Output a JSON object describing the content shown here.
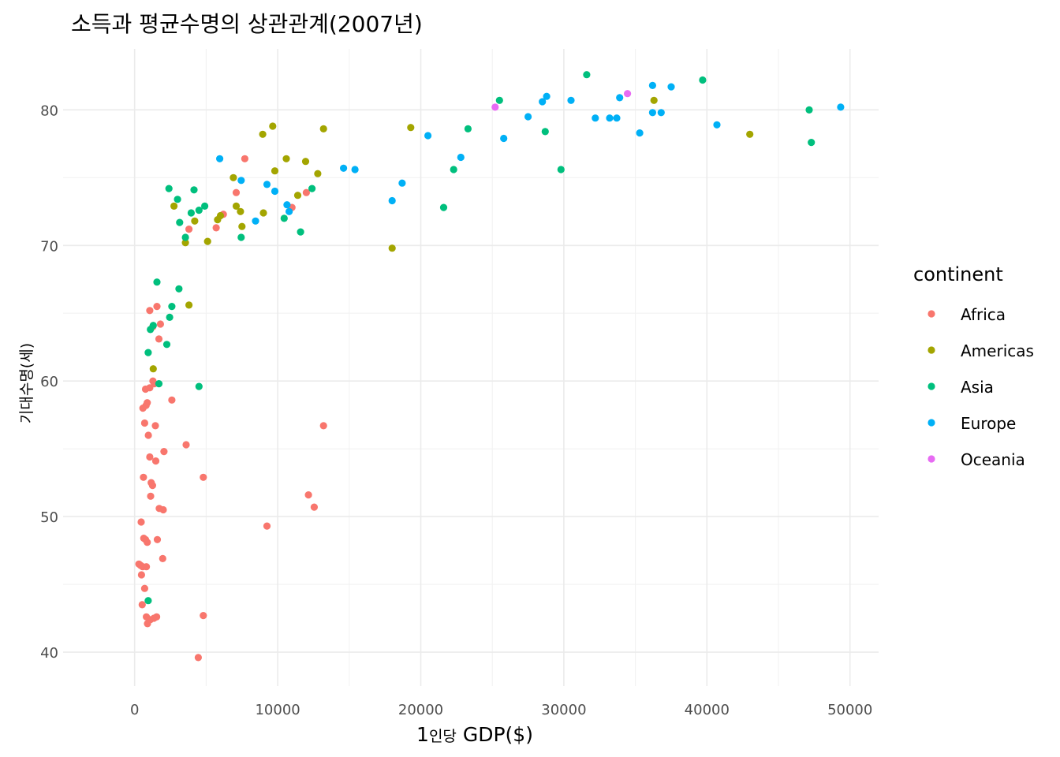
{
  "chart_data": {
    "type": "scatter",
    "title": "소득과 평균수명의 상관관계(2007년)",
    "xlabel_num": "1",
    "xlabel_hangul": "인당",
    "xlabel_rest": " GDP($)",
    "ylabel": "기대수명(세)",
    "xlim": [
      -5000,
      52000
    ],
    "ylim": [
      37.5,
      84.5
    ],
    "x_ticks": [
      0,
      10000,
      20000,
      30000,
      40000,
      50000
    ],
    "x_tick_labels": [
      "0",
      "10000",
      "20000",
      "30000",
      "40000",
      "50000"
    ],
    "y_ticks": [
      40,
      50,
      60,
      70,
      80
    ],
    "y_tick_labels": [
      "40",
      "50",
      "60",
      "70",
      "80"
    ],
    "grid": true,
    "legend": {
      "title": "continent",
      "placement": "right"
    },
    "series": [
      {
        "name": "Africa",
        "color": "#F8766D",
        "points": [
          [
            300,
            46.5
          ],
          [
            420,
            46.4
          ],
          [
            480,
            45.7
          ],
          [
            530,
            43.5
          ],
          [
            460,
            49.6
          ],
          [
            700,
            44.7
          ],
          [
            560,
            46.3
          ],
          [
            820,
            46.3
          ],
          [
            640,
            48.4
          ],
          [
            760,
            48.3
          ],
          [
            880,
            48.1
          ],
          [
            820,
            42.6
          ],
          [
            900,
            42.1
          ],
          [
            1100,
            42.4
          ],
          [
            1350,
            42.5
          ],
          [
            1540,
            42.6
          ],
          [
            1590,
            48.3
          ],
          [
            1960,
            46.9
          ],
          [
            1720,
            50.6
          ],
          [
            2000,
            50.5
          ],
          [
            1120,
            51.5
          ],
          [
            1160,
            52.5
          ],
          [
            1250,
            52.3
          ],
          [
            620,
            52.9
          ],
          [
            1060,
            54.4
          ],
          [
            1480,
            54.1
          ],
          [
            2050,
            54.8
          ],
          [
            3600,
            55.3
          ],
          [
            960,
            56.0
          ],
          [
            1450,
            56.7
          ],
          [
            700,
            56.9
          ],
          [
            580,
            58.0
          ],
          [
            800,
            58.2
          ],
          [
            880,
            58.4
          ],
          [
            760,
            59.4
          ],
          [
            1060,
            59.5
          ],
          [
            1280,
            60.0
          ],
          [
            1380,
            59.8
          ],
          [
            2600,
            58.6
          ],
          [
            4800,
            52.9
          ],
          [
            4450,
            39.6
          ],
          [
            4800,
            42.7
          ],
          [
            9250,
            49.3
          ],
          [
            12150,
            51.6
          ],
          [
            12550,
            50.7
          ],
          [
            13200,
            56.7
          ],
          [
            1700,
            63.1
          ],
          [
            1800,
            64.2
          ],
          [
            1060,
            65.2
          ],
          [
            1560,
            65.5
          ],
          [
            1270,
            64.0
          ],
          [
            3800,
            71.2
          ],
          [
            5700,
            71.3
          ],
          [
            6200,
            72.3
          ],
          [
            7100,
            73.9
          ],
          [
            7700,
            76.4
          ],
          [
            11000,
            72.8
          ],
          [
            12000,
            73.9
          ]
        ]
      },
      {
        "name": "Americas",
        "color": "#A3A500",
        "points": [
          [
            1300,
            60.9
          ],
          [
            3800,
            65.6
          ],
          [
            2750,
            72.9
          ],
          [
            3550,
            70.2
          ],
          [
            4200,
            71.8
          ],
          [
            5100,
            70.3
          ],
          [
            5800,
            71.9
          ],
          [
            6000,
            72.2
          ],
          [
            6900,
            75.0
          ],
          [
            7100,
            72.9
          ],
          [
            7400,
            72.5
          ],
          [
            7500,
            71.4
          ],
          [
            8950,
            78.2
          ],
          [
            9000,
            72.4
          ],
          [
            9650,
            78.8
          ],
          [
            9800,
            75.5
          ],
          [
            10600,
            76.4
          ],
          [
            11400,
            73.7
          ],
          [
            11950,
            76.2
          ],
          [
            12800,
            75.3
          ],
          [
            13200,
            78.6
          ],
          [
            18000,
            69.8
          ],
          [
            19300,
            78.7
          ],
          [
            36300,
            80.7
          ],
          [
            43000,
            78.2
          ]
        ]
      },
      {
        "name": "Asia",
        "color": "#00BF7D",
        "points": [
          [
            950,
            43.8
          ],
          [
            950,
            62.1
          ],
          [
            1100,
            63.8
          ],
          [
            1300,
            64.1
          ],
          [
            1700,
            59.8
          ],
          [
            1560,
            67.3
          ],
          [
            2250,
            62.7
          ],
          [
            2450,
            64.7
          ],
          [
            2600,
            65.5
          ],
          [
            3100,
            66.8
          ],
          [
            2400,
            74.2
          ],
          [
            3000,
            73.4
          ],
          [
            3150,
            71.7
          ],
          [
            3550,
            70.6
          ],
          [
            3950,
            72.4
          ],
          [
            4150,
            74.1
          ],
          [
            4500,
            72.6
          ],
          [
            4900,
            72.9
          ],
          [
            4500,
            59.6
          ],
          [
            7450,
            70.6
          ],
          [
            10450,
            72.0
          ],
          [
            11600,
            71.0
          ],
          [
            12400,
            74.2
          ],
          [
            21600,
            72.8
          ],
          [
            22300,
            75.6
          ],
          [
            23300,
            78.6
          ],
          [
            25500,
            80.7
          ],
          [
            28700,
            78.4
          ],
          [
            29800,
            75.6
          ],
          [
            31600,
            82.6
          ],
          [
            39700,
            82.2
          ],
          [
            47150,
            80.0
          ],
          [
            47300,
            77.6
          ]
        ]
      },
      {
        "name": "Europe",
        "color": "#00B0F6",
        "points": [
          [
            5950,
            76.4
          ],
          [
            7450,
            74.8
          ],
          [
            8450,
            71.8
          ],
          [
            9250,
            74.5
          ],
          [
            9800,
            74.0
          ],
          [
            10650,
            73.0
          ],
          [
            10800,
            72.5
          ],
          [
            14600,
            75.7
          ],
          [
            15400,
            75.6
          ],
          [
            18000,
            73.3
          ],
          [
            18700,
            74.6
          ],
          [
            20500,
            78.1
          ],
          [
            22800,
            76.5
          ],
          [
            25800,
            77.9
          ],
          [
            27500,
            79.5
          ],
          [
            28500,
            80.6
          ],
          [
            28800,
            81.0
          ],
          [
            30500,
            80.7
          ],
          [
            32200,
            79.4
          ],
          [
            33200,
            79.4
          ],
          [
            33700,
            79.4
          ],
          [
            33900,
            80.9
          ],
          [
            35300,
            78.3
          ],
          [
            36200,
            79.8
          ],
          [
            36200,
            81.8
          ],
          [
            36800,
            79.8
          ],
          [
            37500,
            81.7
          ],
          [
            40700,
            78.9
          ],
          [
            49350,
            80.2
          ]
        ]
      },
      {
        "name": "Oceania",
        "color": "#E76BF3",
        "points": [
          [
            25200,
            80.2
          ],
          [
            34450,
            81.2
          ]
        ]
      }
    ]
  }
}
